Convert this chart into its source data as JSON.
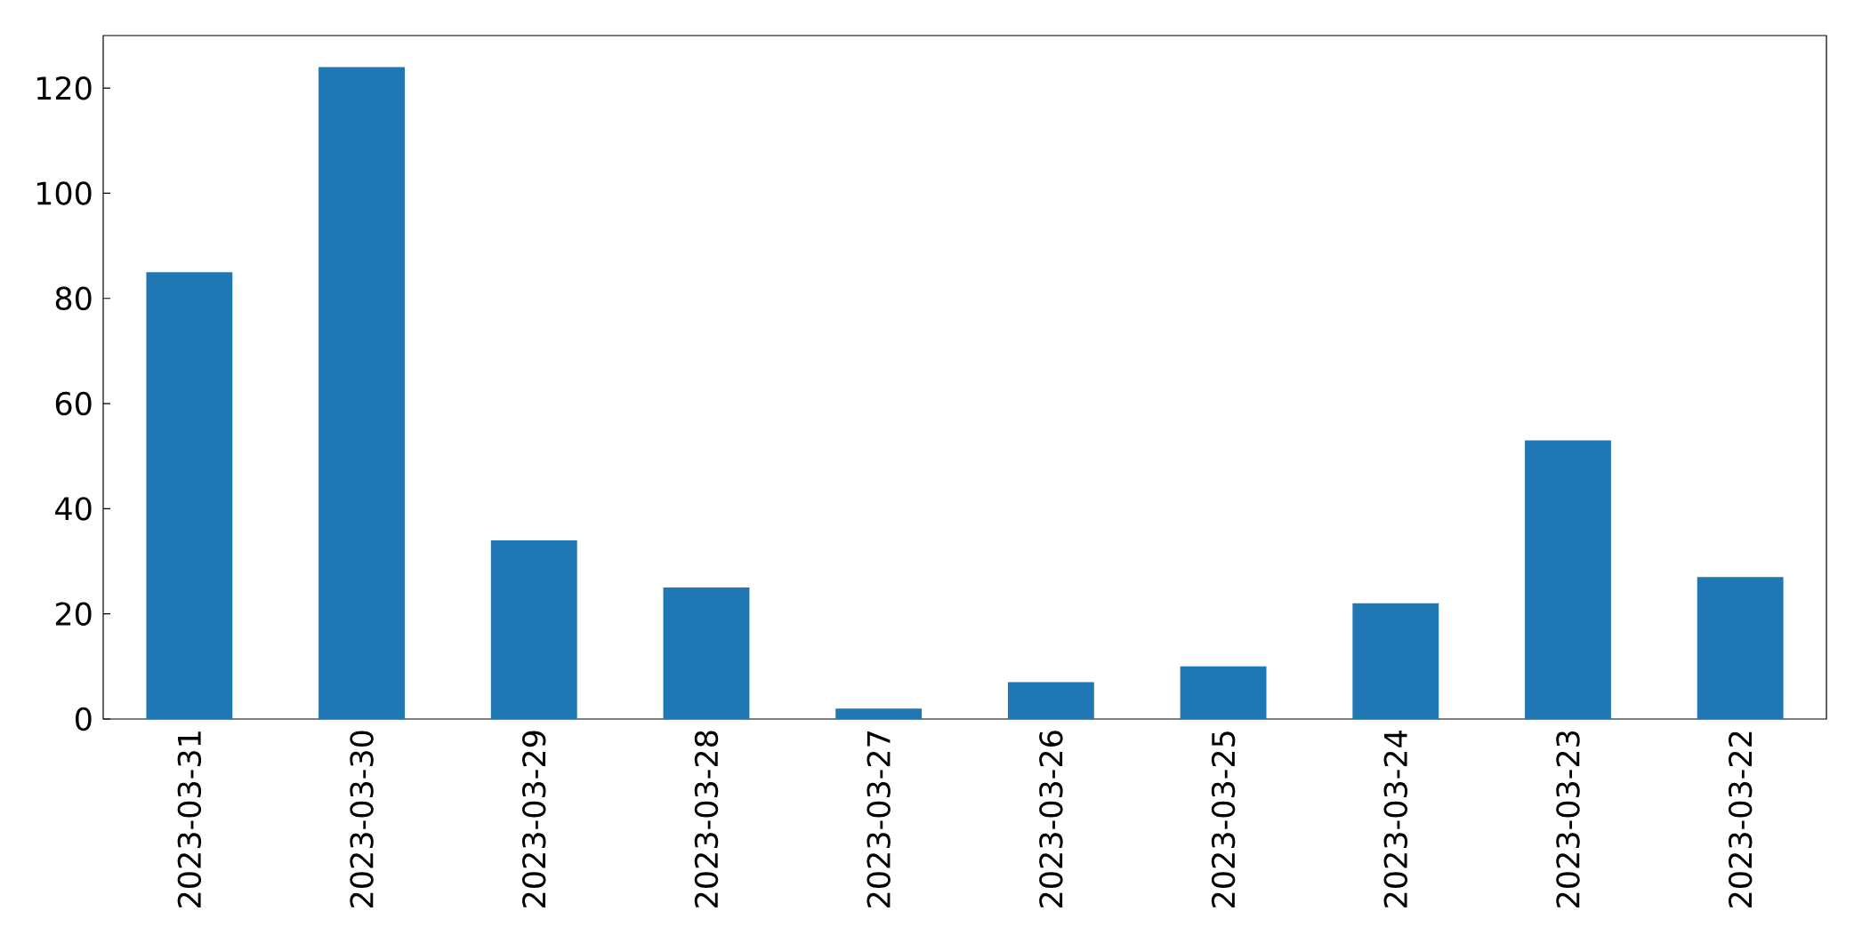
{
  "chart_data": {
    "type": "bar",
    "categories": [
      "2023-03-31",
      "2023-03-30",
      "2023-03-29",
      "2023-03-28",
      "2023-03-27",
      "2023-03-26",
      "2023-03-25",
      "2023-03-24",
      "2023-03-23",
      "2023-03-22"
    ],
    "values": [
      85,
      124,
      34,
      25,
      2,
      7,
      10,
      22,
      53,
      27
    ],
    "color": "#1f77b4",
    "ylim": [
      0,
      130
    ],
    "yticks": [
      0,
      20,
      40,
      60,
      80,
      100,
      120
    ],
    "grid": false
  }
}
